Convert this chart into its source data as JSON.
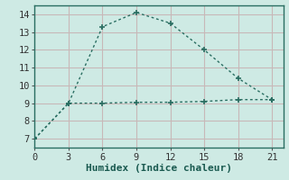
{
  "line1_x": [
    0,
    3,
    6,
    9,
    12,
    15,
    18,
    21
  ],
  "line1_y": [
    7.0,
    9.0,
    13.3,
    14.1,
    13.5,
    12.0,
    10.4,
    9.2
  ],
  "line2_x": [
    0,
    3,
    6,
    9,
    12,
    15,
    18,
    21
  ],
  "line2_y": [
    7.0,
    9.0,
    9.0,
    9.05,
    9.05,
    9.1,
    9.2,
    9.2
  ],
  "line_color": "#2a6e62",
  "bg_color": "#ceeae4",
  "grid_color_major": "#c8b8b8",
  "grid_color_minor": "#ddd0d0",
  "xlabel": "Humidex (Indice chaleur)",
  "xlim": [
    0,
    22
  ],
  "ylim": [
    6.5,
    14.5
  ],
  "xticks": [
    0,
    3,
    6,
    9,
    12,
    15,
    18,
    21
  ],
  "yticks": [
    7,
    8,
    9,
    10,
    11,
    12,
    13,
    14
  ],
  "xlabel_fontsize": 8,
  "tick_fontsize": 7.5
}
